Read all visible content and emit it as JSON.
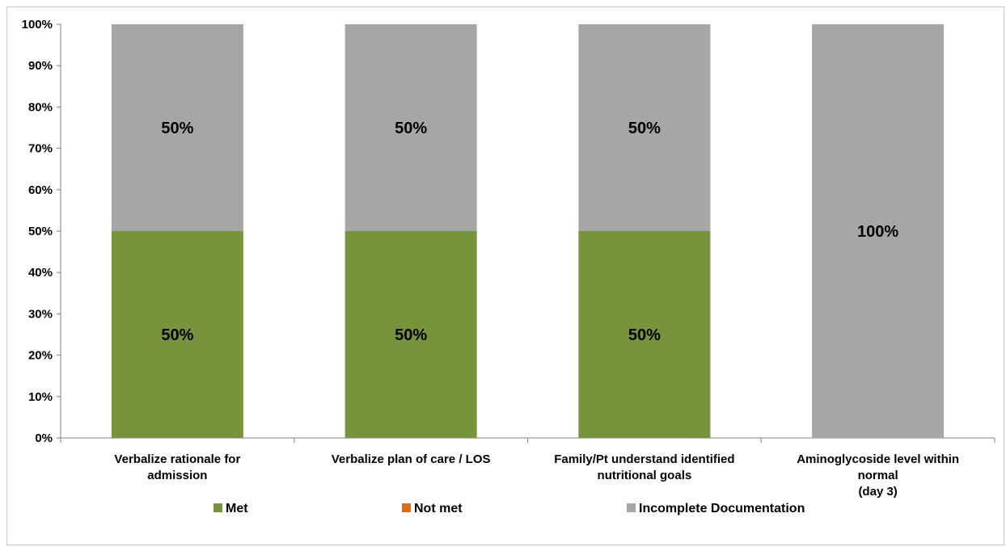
{
  "chart_data": {
    "type": "bar",
    "stacked": true,
    "title": "",
    "xlabel": "",
    "ylabel": "",
    "ylim": [
      0,
      1
    ],
    "yticks": [
      "0%",
      "10%",
      "20%",
      "30%",
      "40%",
      "50%",
      "60%",
      "70%",
      "80%",
      "90%",
      "100%"
    ],
    "categories": [
      [
        "Verbalize rationale for",
        "admission"
      ],
      [
        "Verbalize plan of care / LOS"
      ],
      [
        "Family/Pt understand identified",
        "nutritional goals"
      ],
      [
        "Aminoglycoside level within",
        "normal",
        "(day 3)"
      ]
    ],
    "series": [
      {
        "name": "Met",
        "color": "#77933C",
        "values": [
          0.5,
          0.5,
          0.5,
          0
        ],
        "labels": [
          "50%",
          "50%",
          "50%",
          ""
        ]
      },
      {
        "name": "Not met",
        "color": "#E46C0A",
        "values": [
          0,
          0,
          0,
          0
        ],
        "labels": [
          "",
          "",
          "",
          ""
        ]
      },
      {
        "name": "Incomplete Documentation",
        "color": "#A6A6A6",
        "values": [
          0.5,
          0.5,
          0.5,
          1
        ],
        "labels": [
          "50%",
          "50%",
          "50%",
          "100%"
        ]
      }
    ],
    "grid": false,
    "legend": "bottom"
  }
}
